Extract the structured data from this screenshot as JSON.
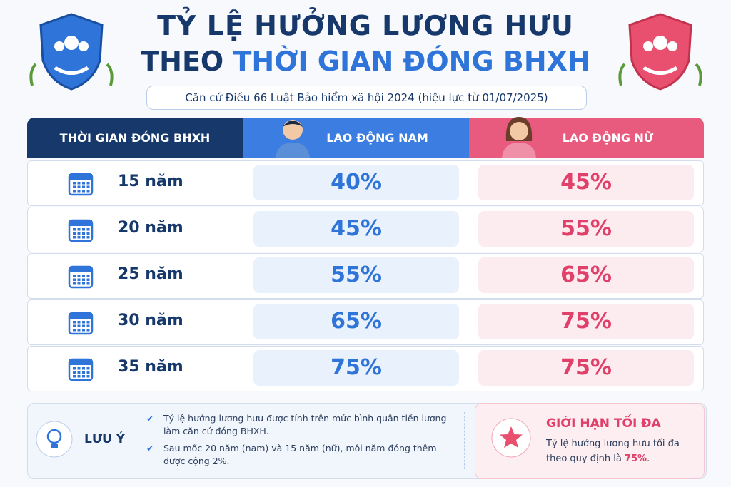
{
  "header": {
    "title_line1": "TỶ LỆ HƯỞNG LƯƠNG HƯU",
    "title_line2_prefix": "THEO",
    "title_line2_highlight": "THỜI GIAN ĐÓNG BHXH",
    "subtitle": "Căn cứ Điều 66 Luật Bảo hiểm xã hội 2024 (hiệu lực từ 01/07/2025)"
  },
  "table": {
    "headers": [
      "THỜI GIAN ĐÓNG BHXH",
      "LAO ĐỘNG NAM",
      "LAO ĐỘNG NỮ"
    ],
    "rows": [
      [
        "15 năm",
        "40%",
        "45%"
      ],
      [
        "20 năm",
        "45%",
        "55%"
      ],
      [
        "25 năm",
        "55%",
        "65%"
      ],
      [
        "30 năm",
        "65%",
        "75%"
      ],
      [
        "35 năm",
        "75%",
        "75%"
      ]
    ]
  },
  "note": {
    "label": "LƯU Ý",
    "items": [
      "Tỷ lệ hưởng lương hưu được tính trên mức bình quân tiền lương làm căn cứ đóng BHXH.",
      "Sau mốc 20 năm (nam) và 15 năm (nữ), mỗi năm đóng thêm được cộng 2%."
    ]
  },
  "limit": {
    "title": "GIỚI HẠN TỐI ĐA",
    "text": "Tỷ lệ hưởng lương hưu tối đa theo quy định là",
    "highlight": "75%",
    "text_end": "."
  }
}
